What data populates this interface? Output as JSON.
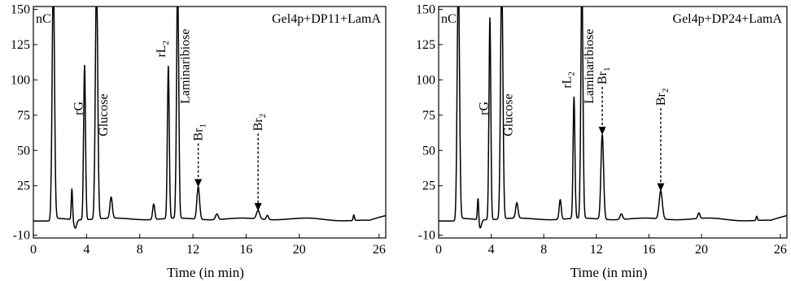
{
  "chart_data": [
    {
      "type": "line",
      "title": "Gel4p+DP11+LamA",
      "xlabel": "Time (in min)",
      "ylabel": "",
      "xlim": [
        0,
        26.5
      ],
      "ylim": [
        -12,
        152
      ],
      "x_ticks": [
        0,
        4,
        8,
        12,
        16,
        20,
        26
      ],
      "y_ticks": [
        -10,
        25,
        50,
        75,
        100,
        125,
        150
      ],
      "baseline": 0,
      "peaks": [
        {
          "label": "nC",
          "x": 1.5,
          "height": 170,
          "width": 0.09
        },
        {
          "label": "",
          "x": 2.9,
          "height": 22,
          "width": 0.05
        },
        {
          "label": "rG",
          "x": 3.85,
          "height": 110,
          "width": 0.07
        },
        {
          "label": "Glucose",
          "x": 4.75,
          "height": 170,
          "width": 0.09
        },
        {
          "label": "",
          "x": 5.85,
          "height": 15,
          "width": 0.09
        },
        {
          "label": "",
          "x": 9.05,
          "height": 11,
          "width": 0.08
        },
        {
          "label": "rL2",
          "x": 10.15,
          "height": 108,
          "width": 0.07
        },
        {
          "label": "Laminaribiose",
          "x": 10.85,
          "height": 170,
          "width": 0.08
        },
        {
          "label": "Br1",
          "x": 12.4,
          "height": 23,
          "width": 0.1
        },
        {
          "label": "",
          "x": 13.8,
          "height": 4,
          "width": 0.1
        },
        {
          "label": "Br2",
          "x": 16.9,
          "height": 6,
          "width": 0.12
        },
        {
          "label": "",
          "x": 17.6,
          "height": 3,
          "width": 0.08
        },
        {
          "label": "",
          "x": 24.1,
          "height": 4,
          "width": 0.05
        }
      ],
      "arrows": [
        {
          "label": "Br1",
          "x": 12.4,
          "y_top": 55,
          "y_tip": 24
        },
        {
          "label": "Br2",
          "x": 16.9,
          "y_top": 62,
          "y_tip": 7
        }
      ]
    },
    {
      "type": "line",
      "title": "Gel4p+DP24+LamA",
      "xlabel": "Time (in min)",
      "ylabel": "",
      "xlim": [
        0,
        26.5
      ],
      "ylim": [
        -12,
        152
      ],
      "x_ticks": [
        0,
        4,
        8,
        12,
        16,
        20,
        26
      ],
      "y_ticks": [
        -10,
        25,
        50,
        75,
        100,
        125,
        150
      ],
      "baseline": 0,
      "peaks": [
        {
          "label": "nC",
          "x": 1.5,
          "height": 170,
          "width": 0.09
        },
        {
          "label": "",
          "x": 3.0,
          "height": 17,
          "width": 0.05
        },
        {
          "label": "rG",
          "x": 3.9,
          "height": 143,
          "width": 0.07
        },
        {
          "label": "Glucose",
          "x": 4.8,
          "height": 170,
          "width": 0.09
        },
        {
          "label": "",
          "x": 5.95,
          "height": 11,
          "width": 0.09
        },
        {
          "label": "",
          "x": 9.25,
          "height": 14,
          "width": 0.08
        },
        {
          "label": "rL2",
          "x": 10.3,
          "height": 86,
          "width": 0.07
        },
        {
          "label": "Laminaribiose",
          "x": 10.9,
          "height": 170,
          "width": 0.08
        },
        {
          "label": "Br1",
          "x": 12.45,
          "height": 60,
          "width": 0.1
        },
        {
          "label": "",
          "x": 13.9,
          "height": 4,
          "width": 0.1
        },
        {
          "label": "Br2",
          "x": 16.9,
          "height": 20,
          "width": 0.12
        },
        {
          "label": "",
          "x": 19.8,
          "height": 4,
          "width": 0.08
        },
        {
          "label": "",
          "x": 24.2,
          "height": 3,
          "width": 0.05
        }
      ],
      "arrows": [
        {
          "label": "Br1",
          "x": 12.45,
          "y_top": 95,
          "y_tip": 61
        },
        {
          "label": "Br2",
          "x": 16.9,
          "y_top": 80,
          "y_tip": 21
        }
      ]
    }
  ]
}
